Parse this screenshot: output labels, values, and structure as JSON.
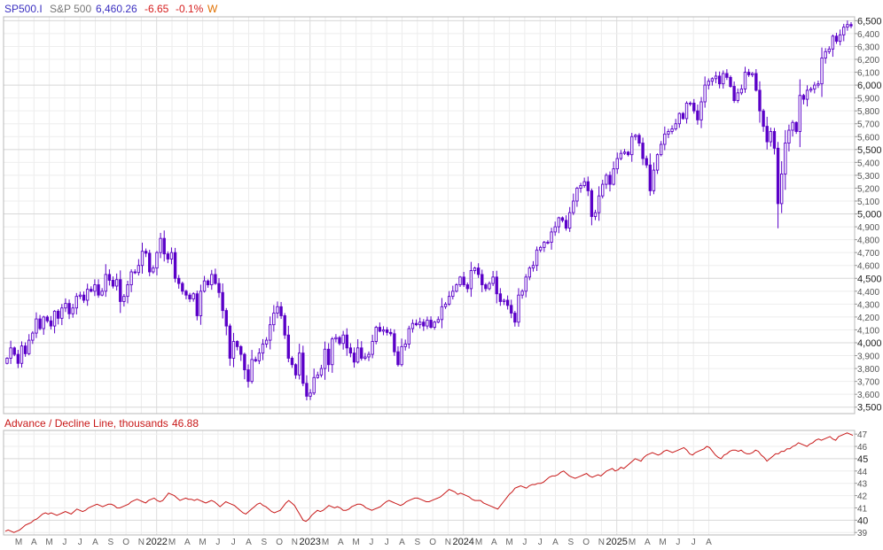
{
  "header": {
    "symbol": "SP500.I",
    "name": "S&P 500",
    "last": "6,460.26",
    "change": "-6.65",
    "change_pct": "-0.1%",
    "period": "W"
  },
  "colors": {
    "symbol": "#3a2fc0",
    "name": "#777777",
    "price": "#3a2fc0",
    "negative": "#d62020",
    "period": "#e07000",
    "candle": "#5a00c8",
    "adl": "#c81818",
    "adl_title": "#c81818"
  },
  "lower_panel": {
    "title": "Advance / Decline Line, thousands",
    "value": "46.88"
  },
  "chart_data": [
    {
      "type": "candlestick",
      "title": "S&P 500",
      "frequency": "weekly",
      "ylim": [
        3450,
        6530
      ],
      "y_ticks": [
        3500,
        3600,
        3700,
        3800,
        3900,
        4000,
        4100,
        4200,
        4300,
        4400,
        4500,
        4600,
        4700,
        4800,
        4900,
        5000,
        5100,
        5200,
        5300,
        5400,
        5500,
        5600,
        5700,
        5800,
        5900,
        6000,
        6100,
        6200,
        6300,
        6400,
        6500
      ],
      "y_major_ticks": [
        3500,
        4000,
        4500,
        5000,
        5500,
        6000,
        6500
      ],
      "x_time_labels": [
        "M",
        "A",
        "M",
        "J",
        "J",
        "A",
        "S",
        "O",
        "N",
        "2022",
        "M",
        "A",
        "M",
        "J",
        "J",
        "A",
        "S",
        "O",
        "N",
        "2023",
        "M",
        "A",
        "M",
        "J",
        "J",
        "A",
        "S",
        "O",
        "N",
        "2024",
        "M",
        "A",
        "M",
        "J",
        "J",
        "A",
        "S",
        "O",
        "N",
        "2025",
        "M",
        "A",
        "M",
        "J",
        "J",
        "A"
      ],
      "closes": [
        3880,
        3960,
        3910,
        3840,
        3975,
        3915,
        4020,
        4075,
        4185,
        4110,
        4200,
        4170,
        4130,
        4245,
        4190,
        4270,
        4305,
        4225,
        4270,
        4360,
        4370,
        4330,
        4415,
        4400,
        4450,
        4370,
        4400,
        4530,
        4485,
        4440,
        4490,
        4320,
        4360,
        4450,
        4550,
        4545,
        4600,
        4710,
        4695,
        4550,
        4580,
        4700,
        4810,
        4690,
        4650,
        4700,
        4500,
        4460,
        4400,
        4370,
        4340,
        4380,
        4210,
        4400,
        4480,
        4450,
        4530,
        4460,
        4390,
        4250,
        4130,
        3880,
        4010,
        3970,
        3910,
        3790,
        3700,
        3870,
        3860,
        3920,
        3990,
        4020,
        4140,
        4230,
        4280,
        4210,
        4060,
        3880,
        3830,
        3750,
        3920,
        3685,
        3585,
        3610,
        3730,
        3750,
        3800,
        3950,
        3830,
        4030,
        4040,
        3995,
        4060,
        3960,
        3920,
        3850,
        3960,
        3880,
        3890,
        3910,
        4010,
        4120,
        4090,
        4100,
        4080,
        4070,
        3930,
        3830,
        3970,
        3990,
        4110,
        4150,
        4140,
        4160,
        4130,
        4175,
        4120,
        4160,
        4180,
        4280,
        4300,
        4360,
        4400,
        4450,
        4510,
        4450,
        4420,
        4560,
        4580,
        4530,
        4450,
        4420,
        4460,
        4510,
        4380,
        4320,
        4330,
        4290,
        4230,
        4160,
        4370,
        4400,
        4510,
        4580,
        4600,
        4720,
        4740,
        4780,
        4780,
        4860,
        4900,
        4970,
        4950,
        4890,
        5010,
        5100,
        5200,
        5220,
        5250,
        5180,
        4980,
        5010,
        5140,
        5230,
        5300,
        5230,
        5350,
        5430,
        5470,
        5480,
        5460,
        5600,
        5610,
        5550,
        5430,
        5380,
        5180,
        5340,
        5460,
        5540,
        5620,
        5640,
        5660,
        5700,
        5780,
        5740,
        5860,
        5860,
        5800,
        5730,
        5870,
        6000,
        6030,
        6050,
        6070,
        6010,
        6090,
        6060,
        5990,
        5880,
        5940,
        5970,
        6100,
        6080,
        6090,
        5960,
        5800,
        5680,
        5560,
        5640,
        5510,
        5080,
        5310,
        5550,
        5650,
        5710,
        5640,
        5920,
        5890,
        5960,
        5970,
        6000,
        6010,
        6210,
        6260,
        6280,
        6380,
        6340,
        6390,
        6450,
        6470,
        6460
      ]
    },
    {
      "type": "line",
      "title": "Advance / Decline Line, thousands",
      "ylim": [
        38.8,
        47.3
      ],
      "y_ticks": [
        39,
        40,
        41,
        42,
        43,
        44,
        45,
        46,
        47
      ],
      "y_major_ticks": [
        40,
        45
      ],
      "values": [
        39.1,
        39.2,
        39.1,
        39.0,
        39.1,
        39.2,
        39.4,
        39.6,
        39.7,
        39.8,
        40.0,
        40.1,
        40.3,
        40.5,
        40.6,
        40.5,
        40.6,
        40.5,
        40.4,
        40.5,
        40.6,
        40.7,
        40.6,
        40.5,
        40.7,
        40.9,
        40.8,
        40.7,
        40.8,
        41.0,
        41.1,
        41.2,
        41.3,
        41.2,
        41.1,
        41.2,
        41.3,
        41.3,
        41.2,
        41.0,
        41.0,
        41.1,
        41.2,
        41.3,
        41.5,
        41.6,
        41.7,
        41.6,
        41.5,
        41.4,
        41.6,
        41.7,
        41.8,
        41.6,
        41.5,
        41.6,
        41.9,
        42.2,
        42.1,
        42.0,
        41.8,
        41.6,
        41.7,
        41.8,
        41.7,
        41.7,
        41.6,
        41.7,
        41.6,
        41.5,
        41.4,
        41.5,
        41.6,
        41.5,
        41.3,
        41.1,
        41.3,
        41.5,
        41.4,
        41.3,
        41.2,
        41.0,
        40.8,
        40.6,
        40.5,
        40.7,
        40.9,
        41.1,
        41.3,
        41.4,
        41.2,
        41.1,
        40.9,
        40.7,
        40.6,
        40.7,
        40.8,
        41.1,
        41.4,
        41.6,
        41.4,
        41.2,
        40.8,
        40.4,
        40.0,
        39.9,
        40.1,
        40.4,
        40.6,
        40.8,
        40.7,
        40.8,
        41.0,
        41.2,
        41.1,
        41.0,
        41.1,
        41.0,
        40.8,
        40.8,
        40.9,
        41.1,
        41.2,
        41.3,
        41.3,
        41.2,
        41.0,
        40.9,
        40.8,
        40.9,
        41.0,
        41.1,
        41.3,
        41.5,
        41.6,
        41.5,
        41.4,
        41.3,
        41.2,
        41.3,
        41.5,
        41.6,
        41.7,
        41.8,
        41.8,
        41.7,
        41.6,
        41.5,
        41.5,
        41.6,
        41.7,
        41.8,
        41.9,
        42.1,
        42.3,
        42.5,
        42.4,
        42.3,
        42.1,
        42.2,
        42.1,
        42.0,
        41.9,
        41.7,
        41.6,
        41.6,
        41.6,
        41.4,
        41.3,
        41.2,
        41.1,
        41.0,
        40.9,
        41.2,
        41.5,
        41.8,
        42.1,
        42.3,
        42.6,
        42.7,
        42.8,
        42.7,
        42.6,
        42.8,
        42.9,
        42.9,
        43.0,
        43.0,
        43.1,
        43.3,
        43.5,
        43.6,
        43.6,
        43.7,
        43.9,
        44.0,
        43.8,
        43.6,
        43.5,
        43.4,
        43.5,
        43.6,
        43.7,
        43.8,
        43.6,
        43.5,
        43.6,
        43.7,
        43.6,
        43.8,
        44.0,
        44.1,
        44.2,
        44.0,
        44.1,
        44.3,
        44.2,
        44.4,
        44.6,
        44.8,
        45.0,
        44.9,
        44.8,
        45.1,
        45.3,
        45.4,
        45.5,
        45.4,
        45.3,
        45.4,
        45.6,
        45.7,
        45.6,
        45.5,
        45.6,
        45.7,
        45.8,
        45.9,
        45.7,
        45.4,
        45.3,
        45.5,
        45.6,
        45.7,
        45.8,
        46.0,
        45.9,
        45.6,
        45.3,
        45.1,
        45.0,
        45.3,
        45.4,
        45.6,
        45.7,
        45.7,
        45.6,
        45.7,
        45.5,
        45.4,
        45.4,
        45.5,
        45.7,
        45.6,
        45.3,
        45.1,
        44.8,
        45.0,
        45.2,
        45.4,
        45.4,
        45.6,
        45.6,
        45.8,
        45.8,
        46.0,
        46.1,
        46.3,
        46.2,
        46.1,
        46.0,
        46.2,
        46.3,
        46.5,
        46.6,
        46.5,
        46.6,
        46.7,
        46.8,
        46.6,
        46.5,
        46.8,
        46.9,
        47.0,
        47.1,
        47.0,
        46.9
      ]
    }
  ]
}
